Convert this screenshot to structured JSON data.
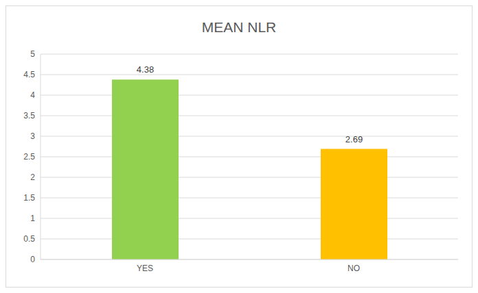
{
  "chart_data": {
    "type": "bar",
    "title": "MEAN NLR",
    "categories": [
      "YES",
      "NO"
    ],
    "values": [
      4.38,
      2.69
    ],
    "colors": [
      "#92d050",
      "#ffc000"
    ],
    "ylim": [
      0,
      5
    ],
    "yticks": [
      0,
      0.5,
      1,
      1.5,
      2,
      2.5,
      3,
      3.5,
      4,
      4.5,
      5
    ],
    "grid": true,
    "data_labels": true
  }
}
